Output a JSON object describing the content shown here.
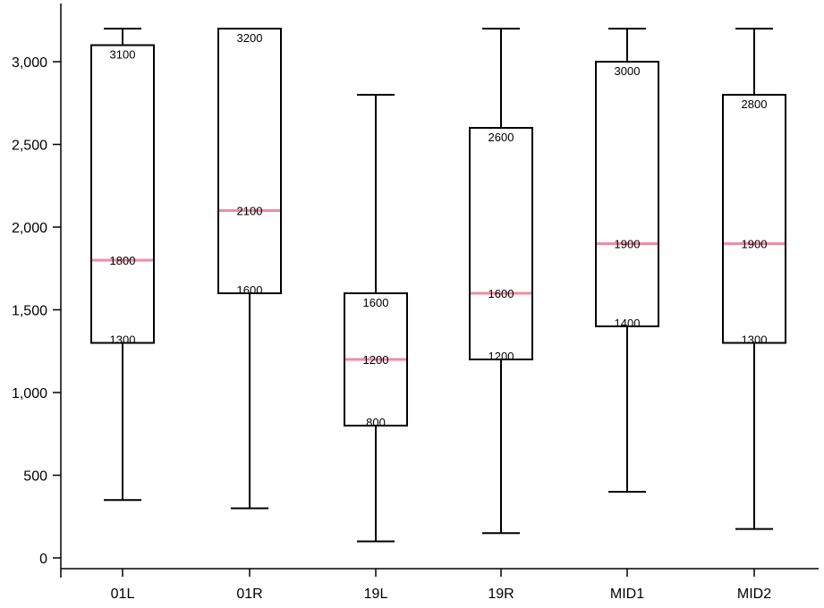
{
  "chart_data": {
    "type": "boxplot",
    "categories": [
      "01L",
      "01R",
      "19L",
      "19R",
      "MID1",
      "MID2"
    ],
    "boxes": [
      {
        "category": "01L",
        "min": 350,
        "q1": 1300,
        "median": 1800,
        "q3": 3100,
        "max": 3200
      },
      {
        "category": "01R",
        "min": 300,
        "q1": 1600,
        "median": 2100,
        "q3": 3200,
        "max": 3200
      },
      {
        "category": "19L",
        "min": 100,
        "q1": 800,
        "median": 1200,
        "q3": 1600,
        "max": 2800
      },
      {
        "category": "19R",
        "min": 150,
        "q1": 1200,
        "median": 1600,
        "q3": 2600,
        "max": 3200
      },
      {
        "category": "MID1",
        "min": 400,
        "q1": 1400,
        "median": 1900,
        "q3": 3000,
        "max": 3200
      },
      {
        "category": "MID2",
        "min": 175,
        "q1": 1300,
        "median": 1900,
        "q3": 2800,
        "max": 3200
      }
    ],
    "yticks": [
      0,
      500,
      1000,
      1500,
      2000,
      2500,
      3000
    ],
    "ytick_labels": [
      "0",
      "500",
      "1,000",
      "1,500",
      "2,000",
      "2,500",
      "3,000"
    ],
    "ylim": [
      -50,
      3350
    ],
    "grid": false,
    "median_color": "#f08ca0",
    "box_color": "#000000"
  }
}
